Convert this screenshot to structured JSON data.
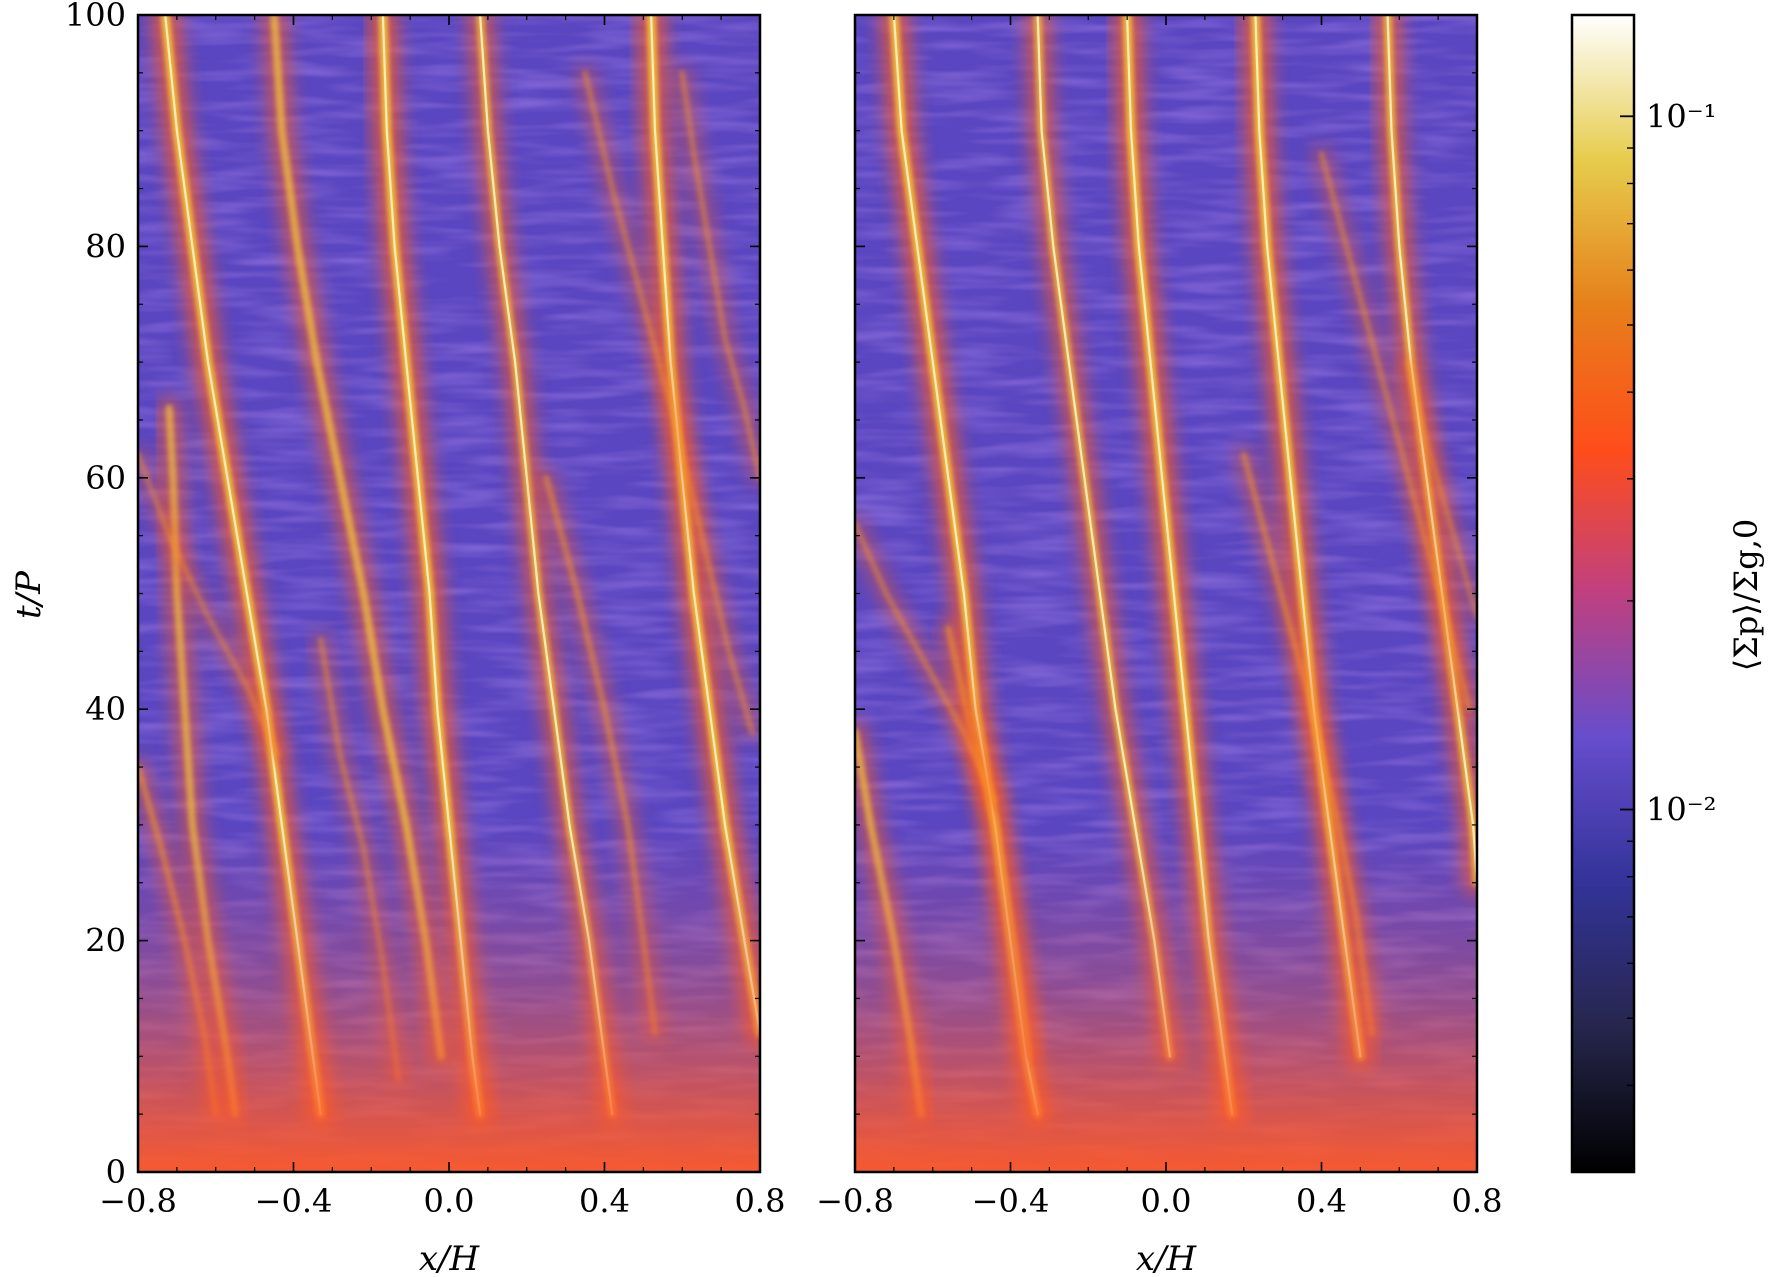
{
  "chart_data": {
    "type": "heatmap",
    "colormap": "CMRmap",
    "log_color_scale": true,
    "clim": [
      0.003,
      0.14
    ],
    "x_axis_label": "x/H",
    "y_axis_label": "t/P",
    "x_tick_labels": [
      "−0.8",
      "−0.4",
      "0.0",
      "0.4",
      "0.8"
    ],
    "y_tick_labels": [
      "0",
      "20",
      "40",
      "60",
      "80",
      "100"
    ],
    "colorbar": {
      "label": "⟨Σp⟩/Σg,0",
      "tick_labels": [
        "10⁻¹",
        "10⁻²"
      ],
      "tick_values": [
        0.1,
        0.01
      ]
    },
    "panels": [
      {
        "xlim": [
          -0.8,
          0.8
        ],
        "ylim": [
          0,
          100
        ],
        "show_y_axis_labels": true,
        "filaments": [
          {
            "strength": 1.0,
            "points": [
              [
                -0.73,
                100
              ],
              [
                -0.7,
                90
              ],
              [
                -0.66,
                80
              ],
              [
                -0.62,
                70
              ],
              [
                -0.57,
                60
              ],
              [
                -0.52,
                50
              ],
              [
                -0.47,
                40
              ],
              [
                -0.43,
                30
              ],
              [
                -0.39,
                20
              ],
              [
                -0.35,
                10
              ],
              [
                -0.33,
                5
              ]
            ]
          },
          {
            "strength": 1.0,
            "points": [
              [
                -0.17,
                100
              ],
              [
                -0.16,
                90
              ],
              [
                -0.14,
                80
              ],
              [
                -0.11,
                70
              ],
              [
                -0.08,
                60
              ],
              [
                -0.05,
                50
              ],
              [
                -0.03,
                40
              ],
              [
                0.0,
                30
              ],
              [
                0.03,
                20
              ],
              [
                0.06,
                10
              ],
              [
                0.08,
                5
              ]
            ]
          },
          {
            "strength": 1.0,
            "points": [
              [
                0.52,
                100
              ],
              [
                0.53,
                90
              ],
              [
                0.55,
                80
              ],
              [
                0.57,
                70
              ],
              [
                0.6,
                60
              ],
              [
                0.63,
                50
              ],
              [
                0.67,
                40
              ],
              [
                0.71,
                30
              ],
              [
                0.76,
                20
              ],
              [
                0.8,
                12
              ]
            ]
          },
          {
            "strength": 0.85,
            "points": [
              [
                0.08,
                100
              ],
              [
                0.1,
                90
              ],
              [
                0.13,
                80
              ],
              [
                0.17,
                70
              ],
              [
                0.2,
                60
              ],
              [
                0.23,
                50
              ],
              [
                0.27,
                40
              ],
              [
                0.31,
                30
              ],
              [
                0.36,
                20
              ],
              [
                0.4,
                10
              ],
              [
                0.42,
                5
              ]
            ]
          },
          {
            "strength": 0.8,
            "points": [
              [
                -0.45,
                100
              ],
              [
                -0.43,
                90
              ],
              [
                -0.39,
                80
              ],
              [
                -0.34,
                70
              ],
              [
                -0.28,
                60
              ],
              [
                -0.22,
                50
              ],
              [
                -0.17,
                40
              ],
              [
                -0.11,
                30
              ],
              [
                -0.06,
                20
              ],
              [
                -0.02,
                10
              ]
            ]
          },
          {
            "strength": 0.75,
            "points": [
              [
                -0.72,
                66
              ],
              [
                -0.71,
                60
              ],
              [
                -0.7,
                50
              ],
              [
                -0.68,
                40
              ],
              [
                -0.66,
                30
              ],
              [
                -0.62,
                20
              ],
              [
                -0.57,
                10
              ],
              [
                -0.55,
                5
              ]
            ]
          },
          {
            "strength": 0.6,
            "points": [
              [
                -0.8,
                35
              ],
              [
                -0.74,
                28
              ],
              [
                -0.68,
                20
              ],
              [
                -0.63,
                12
              ],
              [
                -0.6,
                5
              ]
            ]
          },
          {
            "strength": 0.55,
            "points": [
              [
                0.25,
                60
              ],
              [
                0.33,
                50
              ],
              [
                0.4,
                40
              ],
              [
                0.46,
                30
              ],
              [
                0.5,
                20
              ],
              [
                0.53,
                12
              ]
            ]
          },
          {
            "strength": 0.5,
            "points": [
              [
                -0.33,
                46
              ],
              [
                -0.28,
                36
              ],
              [
                -0.22,
                28
              ],
              [
                -0.17,
                18
              ],
              [
                -0.13,
                8
              ]
            ]
          },
          {
            "strength": 0.5,
            "points": [
              [
                0.35,
                95
              ],
              [
                0.42,
                85
              ],
              [
                0.5,
                75
              ],
              [
                0.58,
                65
              ],
              [
                0.65,
                55
              ],
              [
                0.72,
                45
              ],
              [
                0.78,
                38
              ]
            ]
          },
          {
            "strength": 0.45,
            "points": [
              [
                -0.8,
                62
              ],
              [
                -0.72,
                55
              ],
              [
                -0.62,
                48
              ],
              [
                -0.52,
                42
              ],
              [
                -0.44,
                36
              ]
            ]
          },
          {
            "strength": 0.5,
            "points": [
              [
                0.6,
                95
              ],
              [
                0.63,
                88
              ],
              [
                0.67,
                80
              ],
              [
                0.71,
                72
              ],
              [
                0.76,
                66
              ],
              [
                0.8,
                60
              ]
            ]
          }
        ]
      },
      {
        "xlim": [
          -0.8,
          0.8
        ],
        "ylim": [
          0,
          100
        ],
        "show_y_axis_labels": false,
        "filaments": [
          {
            "strength": 1.0,
            "points": [
              [
                -0.7,
                100
              ],
              [
                -0.68,
                90
              ],
              [
                -0.64,
                80
              ],
              [
                -0.6,
                70
              ],
              [
                -0.56,
                60
              ],
              [
                -0.52,
                50
              ],
              [
                -0.49,
                40
              ],
              [
                -0.44,
                30
              ],
              [
                -0.4,
                20
              ],
              [
                -0.36,
                10
              ],
              [
                -0.33,
                5
              ]
            ]
          },
          {
            "strength": 1.0,
            "points": [
              [
                -0.1,
                100
              ],
              [
                -0.09,
                90
              ],
              [
                -0.07,
                80
              ],
              [
                -0.04,
                70
              ],
              [
                -0.01,
                60
              ],
              [
                0.02,
                50
              ],
              [
                0.05,
                40
              ],
              [
                0.08,
                30
              ],
              [
                0.11,
                20
              ],
              [
                0.15,
                10
              ],
              [
                0.17,
                5
              ]
            ]
          },
          {
            "strength": 1.0,
            "points": [
              [
                0.23,
                100
              ],
              [
                0.24,
                90
              ],
              [
                0.26,
                80
              ],
              [
                0.29,
                70
              ],
              [
                0.32,
                60
              ],
              [
                0.35,
                50
              ],
              [
                0.38,
                40
              ],
              [
                0.42,
                30
              ],
              [
                0.46,
                20
              ],
              [
                0.5,
                10
              ]
            ]
          },
          {
            "strength": 0.9,
            "points": [
              [
                0.57,
                100
              ],
              [
                0.58,
                90
              ],
              [
                0.6,
                80
              ],
              [
                0.63,
                70
              ],
              [
                0.67,
                60
              ],
              [
                0.71,
                50
              ],
              [
                0.75,
                40
              ],
              [
                0.79,
                30
              ],
              [
                0.8,
                25
              ]
            ]
          },
          {
            "strength": 0.85,
            "points": [
              [
                -0.33,
                100
              ],
              [
                -0.32,
                90
              ],
              [
                -0.29,
                80
              ],
              [
                -0.25,
                70
              ],
              [
                -0.21,
                60
              ],
              [
                -0.17,
                50
              ],
              [
                -0.13,
                40
              ],
              [
                -0.08,
                30
              ],
              [
                -0.03,
                20
              ],
              [
                0.01,
                10
              ]
            ]
          },
          {
            "strength": 0.75,
            "points": [
              [
                -0.8,
                38
              ],
              [
                -0.76,
                30
              ],
              [
                -0.7,
                20
              ],
              [
                -0.66,
                12
              ],
              [
                -0.63,
                5
              ]
            ]
          },
          {
            "strength": 0.6,
            "points": [
              [
                -0.56,
                47
              ],
              [
                -0.5,
                38
              ],
              [
                -0.44,
                30
              ],
              [
                -0.39,
                20
              ],
              [
                -0.35,
                10
              ]
            ]
          },
          {
            "strength": 0.55,
            "points": [
              [
                0.2,
                62
              ],
              [
                0.28,
                52
              ],
              [
                0.36,
                42
              ],
              [
                0.43,
                32
              ],
              [
                0.49,
                22
              ],
              [
                0.53,
                12
              ]
            ]
          },
          {
            "strength": 0.5,
            "points": [
              [
                -0.8,
                56
              ],
              [
                -0.72,
                50
              ],
              [
                -0.62,
                44
              ],
              [
                -0.52,
                38
              ],
              [
                -0.44,
                32
              ]
            ]
          },
          {
            "strength": 0.5,
            "points": [
              [
                0.4,
                88
              ],
              [
                0.48,
                78
              ],
              [
                0.56,
                68
              ],
              [
                0.64,
                58
              ],
              [
                0.72,
                48
              ],
              [
                0.78,
                40
              ]
            ]
          },
          {
            "strength": 0.45,
            "points": [
              [
                0.62,
                70
              ],
              [
                0.68,
                62
              ],
              [
                0.74,
                55
              ],
              [
                0.8,
                48
              ]
            ]
          }
        ]
      }
    ]
  }
}
